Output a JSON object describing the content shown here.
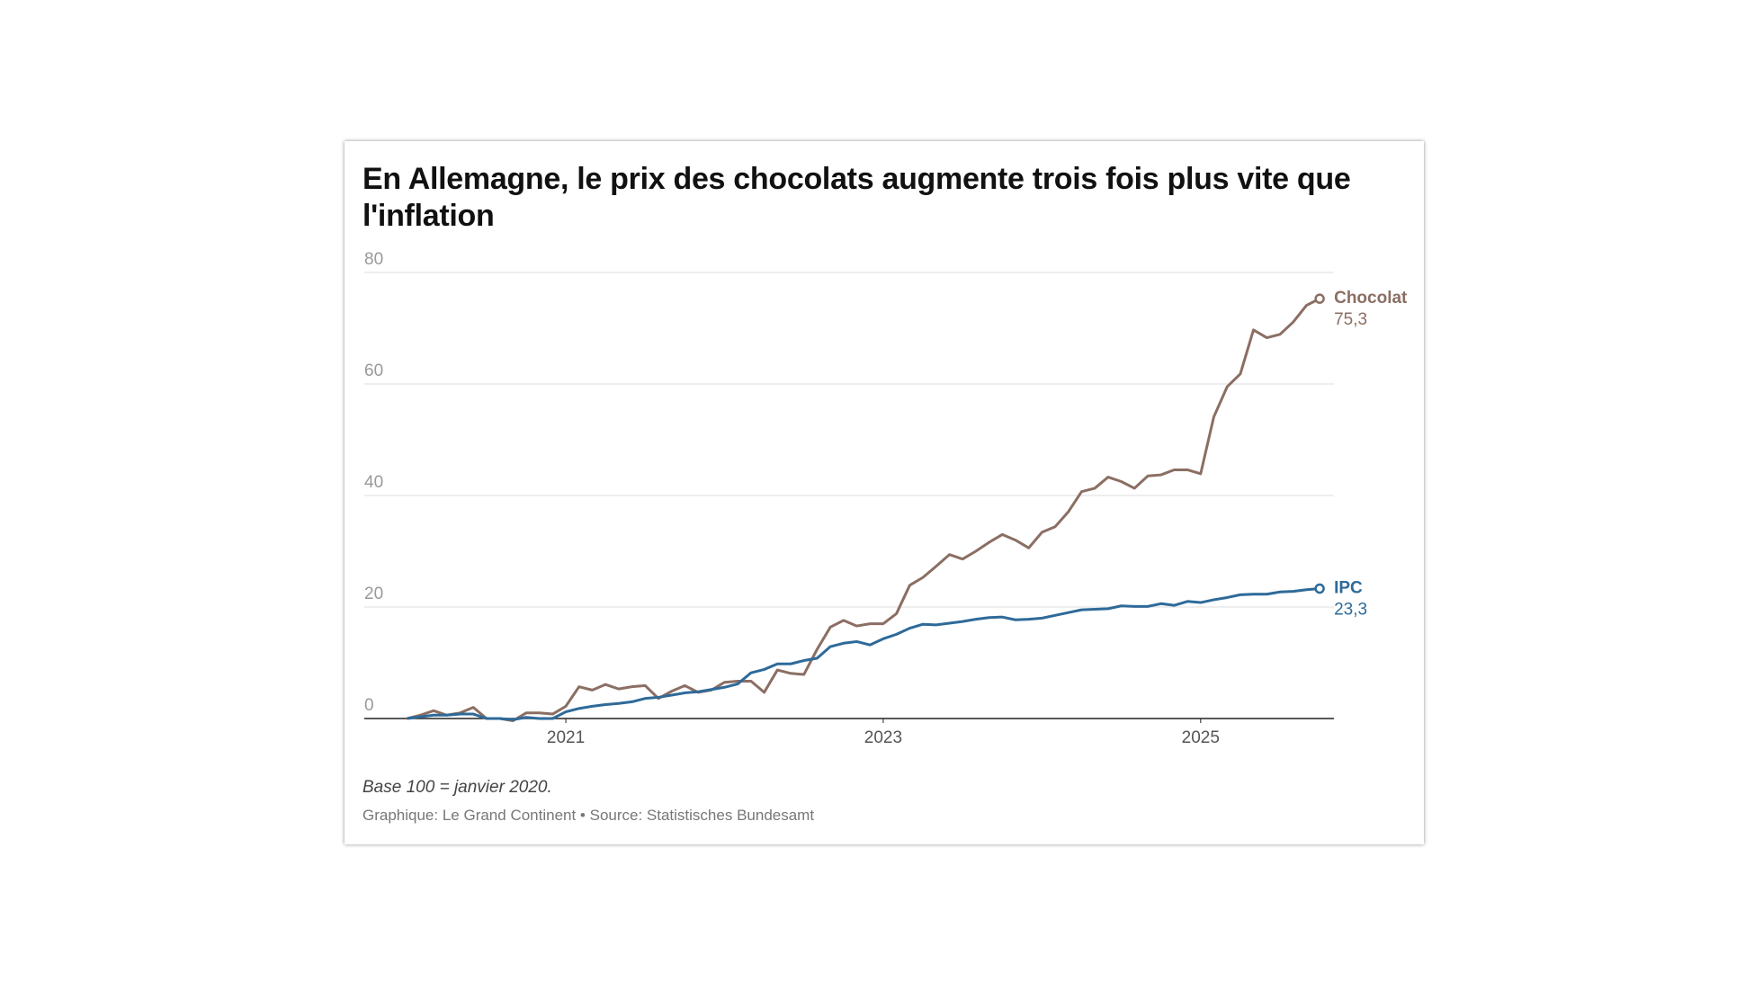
{
  "chart_data": {
    "type": "line",
    "title": "En Allemagne, le prix des chocolats augmente trois fois plus vite que l'inflation",
    "note": "Base 100 = janvier 2020.",
    "source": "Graphique: Le Grand Continent • Source: Statistisches Bundesamt",
    "x": [
      2020,
      2020.083,
      2020.167,
      2020.25,
      2020.333,
      2020.417,
      2020.5,
      2020.583,
      2020.667,
      2020.75,
      2020.833,
      2020.917,
      2021,
      2021.083,
      2021.167,
      2021.25,
      2021.333,
      2021.417,
      2021.5,
      2021.583,
      2021.667,
      2021.75,
      2021.833,
      2021.917,
      2022,
      2022.083,
      2022.167,
      2022.25,
      2022.333,
      2022.417,
      2022.5,
      2022.583,
      2022.667,
      2022.75,
      2022.833,
      2022.917,
      2023,
      2023.083,
      2023.167,
      2023.25,
      2023.333,
      2023.417,
      2023.5,
      2023.583,
      2023.667,
      2023.75,
      2023.833,
      2023.917,
      2024,
      2024.083,
      2024.167,
      2024.25,
      2024.333,
      2024.417,
      2024.5,
      2024.583,
      2024.667,
      2024.75,
      2024.833,
      2024.917,
      2025,
      2025.083,
      2025.167,
      2025.25,
      2025.333,
      2025.417,
      2025.5,
      2025.583,
      2025.667,
      2025.75
    ],
    "series": [
      {
        "name": "Chocolat",
        "color": "#8b6e63",
        "values": [
          0,
          0.6,
          1.4,
          0.6,
          1.0,
          2.0,
          0,
          0,
          -0.4,
          1.0,
          1.0,
          0.8,
          2.2,
          5.7,
          5.1,
          6.1,
          5.3,
          5.7,
          5.9,
          3.6,
          4.9,
          5.9,
          4.7,
          5.1,
          6.5,
          6.7,
          6.7,
          4.7,
          8.7,
          8.1,
          7.9,
          12.4,
          16.4,
          17.6,
          16.6,
          17.0,
          17.0,
          18.8,
          23.9,
          25.3,
          27.3,
          29.4,
          28.6,
          30.0,
          31.6,
          33.0,
          32.0,
          30.6,
          33.4,
          34.4,
          37.1,
          40.7,
          41.3,
          43.3,
          42.5,
          41.3,
          43.5,
          43.7,
          44.6,
          44.6,
          43.9,
          54.1,
          59.5,
          61.8,
          69.7,
          68.3,
          68.9,
          71.1,
          74.1,
          75.3
        ],
        "value_labels": [
          null,
          null,
          null,
          null,
          null,
          null,
          null,
          null,
          null,
          null,
          null,
          null,
          null,
          null,
          null,
          null,
          null,
          null,
          null,
          null,
          null,
          null,
          null,
          null,
          null,
          null,
          null,
          null,
          null,
          null,
          null,
          null,
          null,
          null,
          null,
          null,
          null,
          null,
          null,
          null,
          null,
          null,
          null,
          null,
          null,
          null,
          null,
          null,
          null,
          null,
          null,
          null,
          null,
          null,
          null,
          null,
          null,
          null,
          null,
          null,
          null,
          null,
          null,
          null,
          null,
          null,
          null,
          null,
          null,
          "75,3"
        ]
      },
      {
        "name": "IPC",
        "color": "#2e6a99",
        "values": [
          0,
          0.3,
          0.6,
          0.6,
          0.8,
          0.8,
          0,
          0,
          -0.2,
          0.2,
          0,
          0,
          1.2,
          1.8,
          2.2,
          2.5,
          2.7,
          3.0,
          3.6,
          3.8,
          4.2,
          4.6,
          4.8,
          5.2,
          5.6,
          6.2,
          8.2,
          8.8,
          9.8,
          9.8,
          10.4,
          10.8,
          12.9,
          13.5,
          13.8,
          13.2,
          14.3,
          15.1,
          16.2,
          16.9,
          16.8,
          17.1,
          17.4,
          17.8,
          18.1,
          18.2,
          17.7,
          17.8,
          18.0,
          18.5,
          19.0,
          19.5,
          19.6,
          19.7,
          20.2,
          20.1,
          20.1,
          20.6,
          20.3,
          21.0,
          20.8,
          21.3,
          21.7,
          22.2,
          22.3,
          22.3,
          22.7,
          22.8,
          23.1,
          23.3
        ],
        "value_labels": [
          null,
          null,
          null,
          null,
          null,
          null,
          null,
          null,
          null,
          null,
          null,
          null,
          null,
          null,
          null,
          null,
          null,
          null,
          null,
          null,
          null,
          null,
          null,
          null,
          null,
          null,
          null,
          null,
          null,
          null,
          null,
          null,
          null,
          null,
          null,
          null,
          null,
          null,
          null,
          null,
          null,
          null,
          null,
          null,
          null,
          null,
          null,
          null,
          null,
          null,
          null,
          null,
          null,
          null,
          null,
          null,
          null,
          null,
          null,
          null,
          null,
          null,
          null,
          null,
          null,
          null,
          null,
          null,
          null,
          "23,3"
        ]
      }
    ],
    "xlim": [
      2019.73,
      2025.84
    ],
    "xticks": [
      2021,
      2023,
      2025
    ],
    "ylim": [
      0,
      80
    ],
    "yticks": [
      0,
      20,
      40,
      60,
      80
    ],
    "grid": true
  }
}
